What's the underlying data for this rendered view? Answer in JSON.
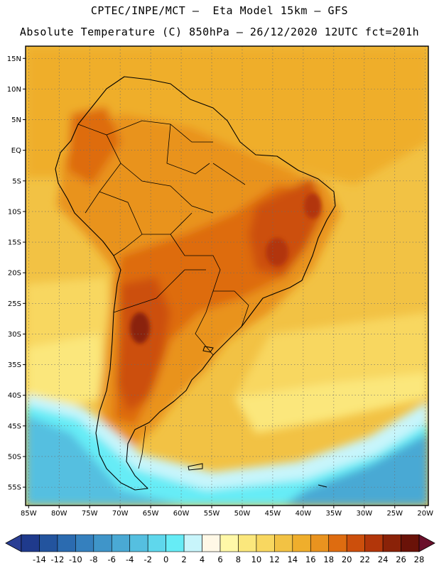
{
  "header": {
    "line1": "CPTEC/INPE/MCT –  Eta Model 15km – GFS",
    "line2": "Absolute Temperature (C) 850hPa – 26/12/2020 12UTC fct=201h"
  },
  "map": {
    "region": "South America",
    "variable": "Absolute Temperature 850hPa",
    "units": "C",
    "lat_labels": [
      "15N",
      "10N",
      "5N",
      "EQ",
      "5S",
      "10S",
      "15S",
      "20S",
      "25S",
      "30S",
      "35S",
      "40S",
      "45S",
      "50S",
      "55S"
    ],
    "lat_values": [
      15,
      10,
      5,
      0,
      -5,
      -10,
      -15,
      -20,
      -25,
      -30,
      -35,
      -40,
      -45,
      -50,
      -55
    ],
    "lon_labels": [
      "85W",
      "80W",
      "75W",
      "70W",
      "65W",
      "60W",
      "55W",
      "50W",
      "45W",
      "40W",
      "35W",
      "30W",
      "25W",
      "20W"
    ],
    "lon_values": [
      -85,
      -80,
      -75,
      -70,
      -65,
      -60,
      -55,
      -50,
      -45,
      -40,
      -35,
      -30,
      -25,
      -20
    ],
    "lon_range": [
      -85.5,
      -19.5
    ],
    "lat_range": [
      -58,
      17
    ]
  },
  "colorbar": {
    "labels": [
      "-14",
      "-12",
      "-10",
      "-8",
      "-6",
      "-4",
      "-2",
      "0",
      "2",
      "4",
      "6",
      "8",
      "10",
      "12",
      "14",
      "16",
      "18",
      "20",
      "22",
      "24",
      "26",
      "28"
    ],
    "colors": [
      "#1f3a8c",
      "#23549e",
      "#2b6bb0",
      "#3580be",
      "#3f95c9",
      "#4aa9d4",
      "#55bfe0",
      "#5fd7ec",
      "#66ecf6",
      "#c8f5fb",
      "#fff8e6",
      "#fff8a8",
      "#fbe77c",
      "#f8d760",
      "#f2c244",
      "#efae2c",
      "#e9931f",
      "#de6c10",
      "#cc4f0c",
      "#b2360a",
      "#8a2208",
      "#6a1208"
    ],
    "under_color": "#2a3e94",
    "over_color": "#6a0f2a"
  },
  "colors": {
    "ocean_warm": "#f2c244",
    "land_hot": "#b2360a",
    "cold_south": "#55bfe0"
  }
}
